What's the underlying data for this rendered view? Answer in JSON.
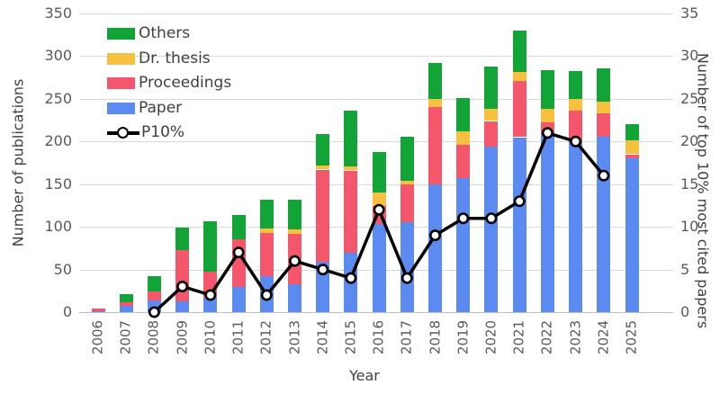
{
  "chart_data": {
    "type": "bar",
    "stacked": true,
    "grid": true,
    "legend_position": "top-left-inside",
    "title": "",
    "categories": [
      "2006",
      "2007",
      "2008",
      "2009",
      "2010",
      "2011",
      "2012",
      "2013",
      "2014",
      "2015",
      "2016",
      "2017",
      "2018",
      "2019",
      "2020",
      "2021",
      "2022",
      "2023",
      "2024",
      "2025"
    ],
    "series": [
      {
        "name": "Paper",
        "color": "#5B8BF0",
        "values": [
          1,
          7,
          14,
          13,
          17,
          30,
          42,
          33,
          59,
          70,
          103,
          105,
          150,
          157,
          194,
          205,
          208,
          200,
          206,
          180
        ]
      },
      {
        "name": "Proceedings",
        "color": "#F4566C",
        "values": [
          3,
          5,
          10,
          60,
          31,
          55,
          51,
          59,
          108,
          96,
          21,
          45,
          90,
          39,
          30,
          66,
          14,
          36,
          27,
          5
        ]
      },
      {
        "name": "Dr. thesis",
        "color": "#F7C13F",
        "values": [
          0,
          0,
          0,
          0,
          0,
          0,
          5,
          5,
          5,
          5,
          16,
          4,
          10,
          16,
          14,
          11,
          16,
          14,
          14,
          16
        ]
      },
      {
        "name": "Others",
        "color": "#13A438",
        "values": [
          0,
          9,
          18,
          26,
          59,
          29,
          34,
          35,
          37,
          65,
          48,
          52,
          42,
          39,
          50,
          48,
          46,
          33,
          39,
          19
        ]
      }
    ],
    "line_series": {
      "name": "P10%",
      "color": "#000000",
      "marker": "open-circle",
      "axis": "right",
      "values": [
        null,
        null,
        0,
        3,
        2,
        7,
        2,
        6,
        5,
        4,
        12,
        4,
        9,
        11,
        11,
        13,
        21,
        20,
        16,
        null
      ]
    },
    "left_axis": {
      "label": "Number of publications",
      "min": 0,
      "max": 350,
      "step": 50
    },
    "right_axis": {
      "label": "Number of top 10% most cited papers",
      "min": 0,
      "max": 35,
      "step": 5
    },
    "x_axis": {
      "label": "Year"
    },
    "legend": [
      "Others",
      "Dr. thesis",
      "Proceedings",
      "Paper",
      "P10%"
    ]
  }
}
